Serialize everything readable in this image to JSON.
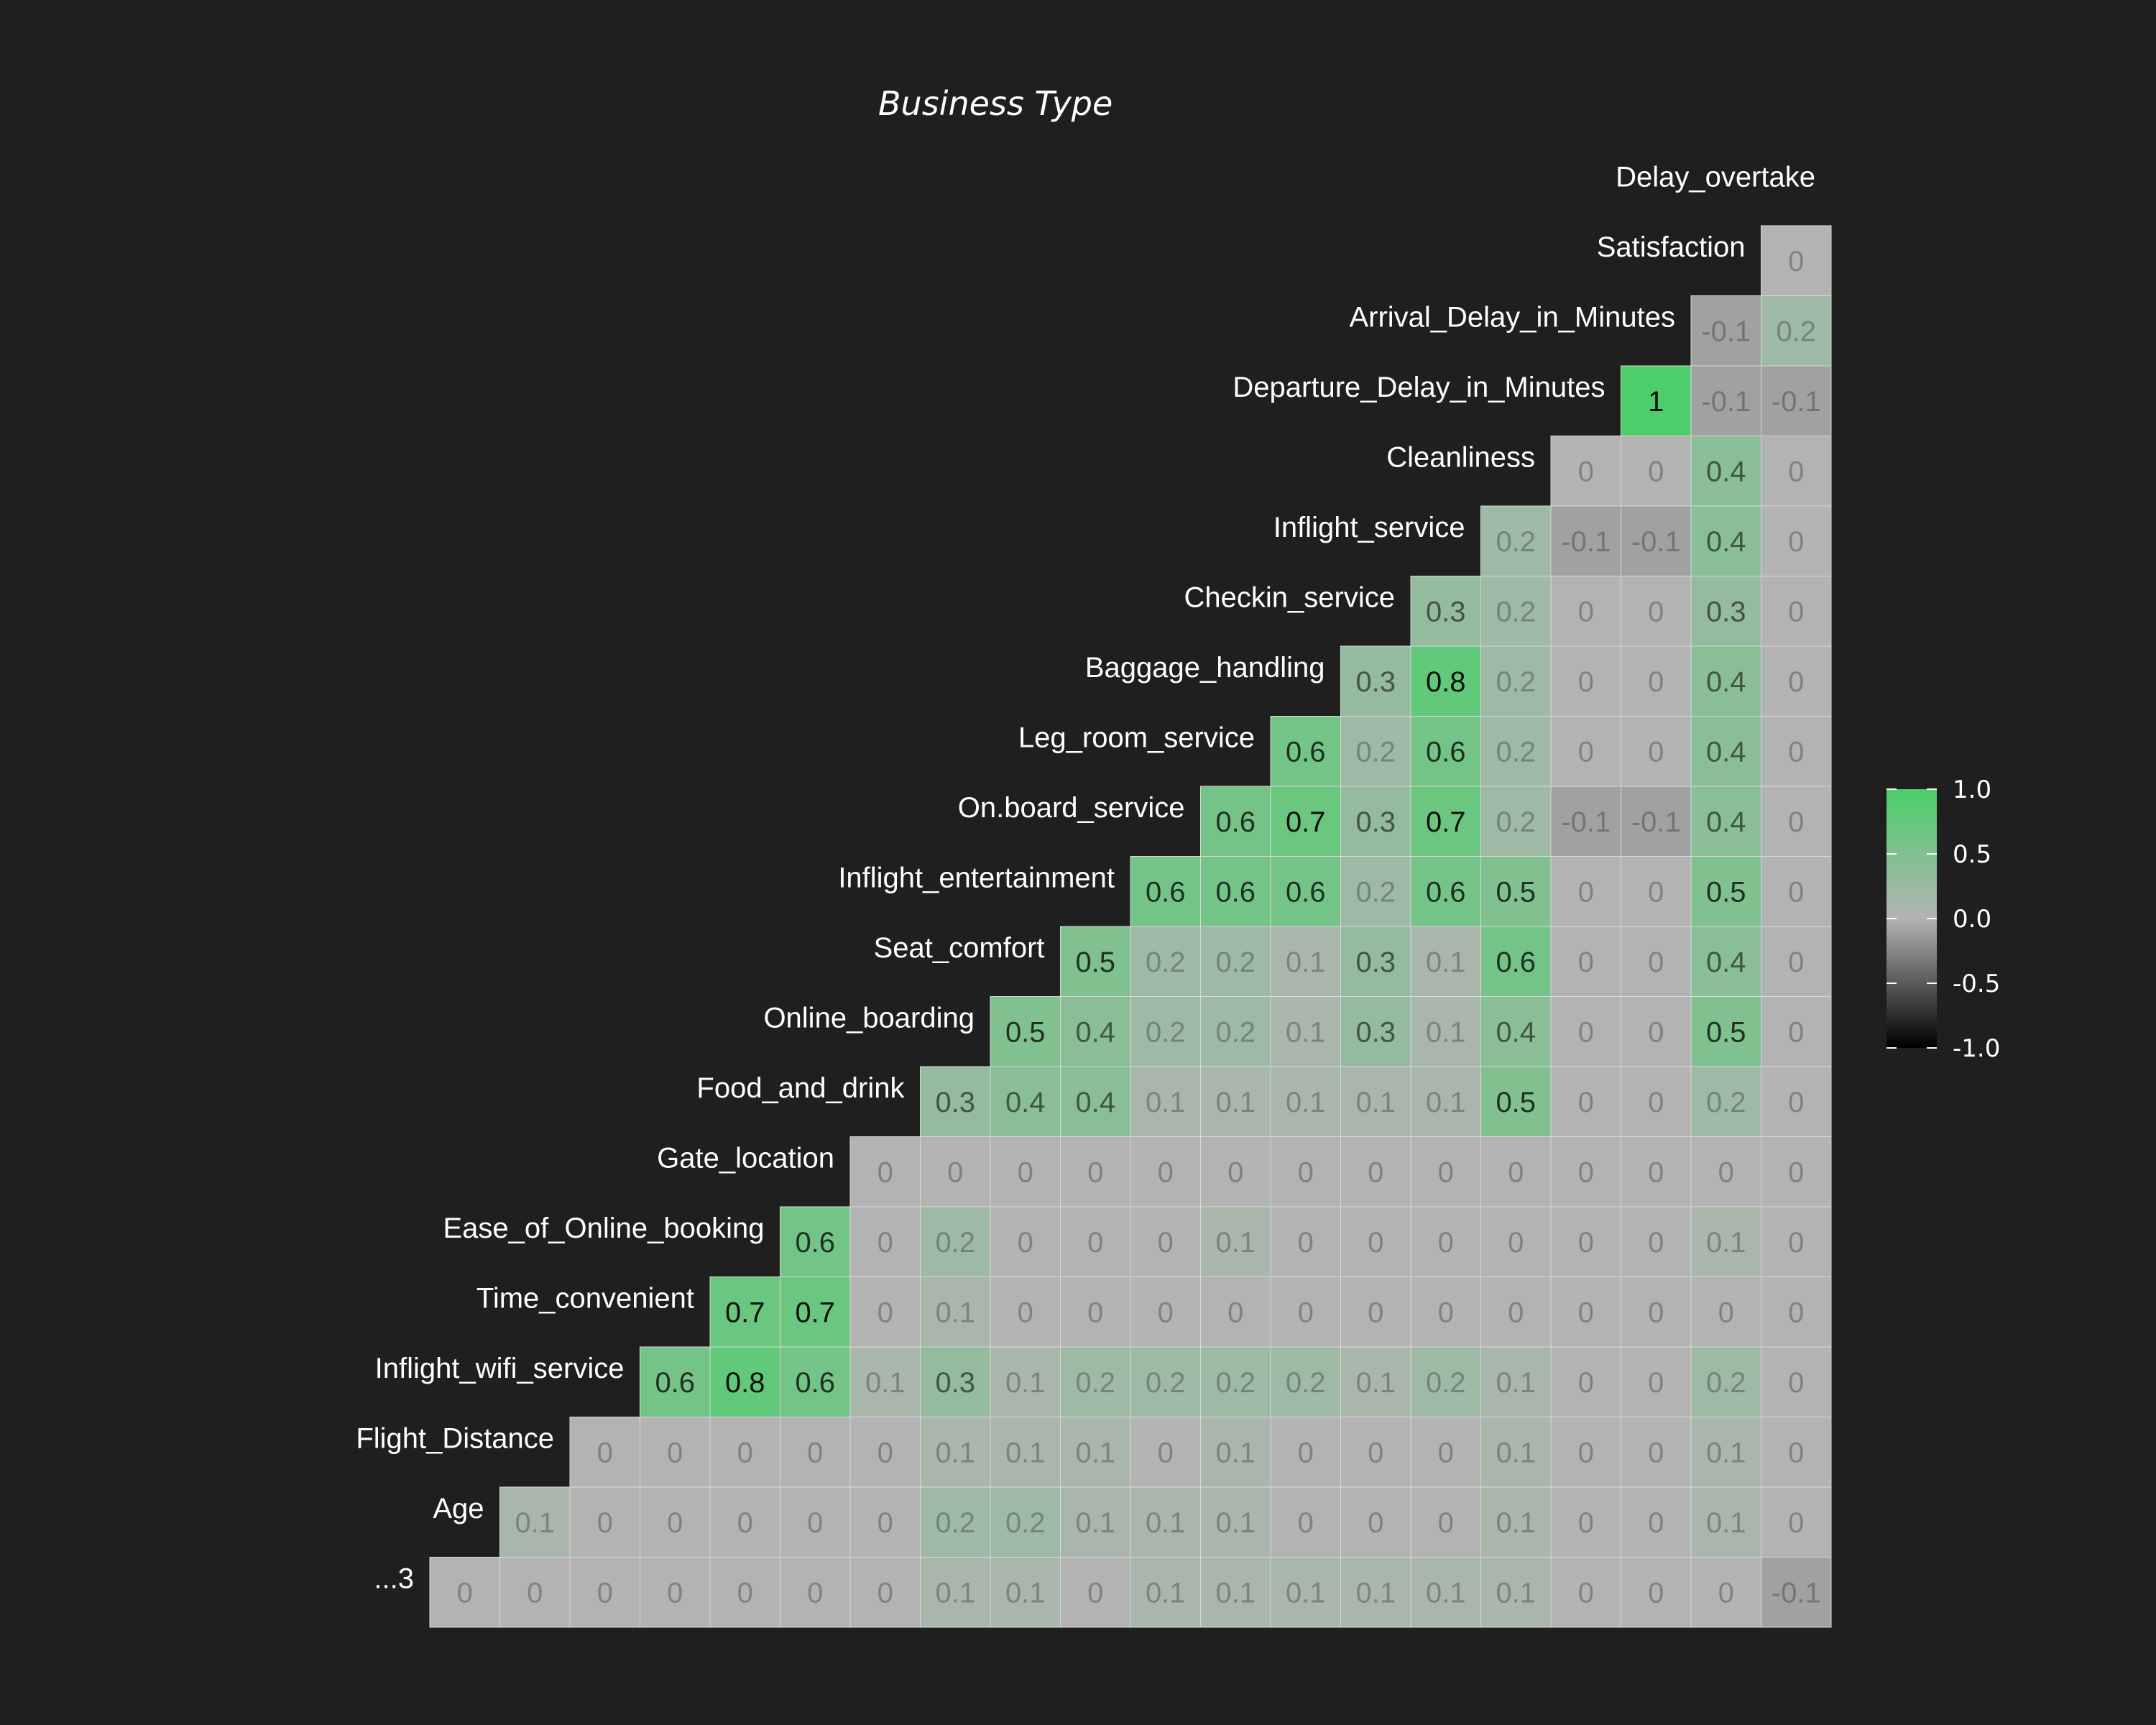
{
  "chart_data": {
    "type": "heatmap",
    "title": "Business Type",
    "variables": [
      "...3",
      "Age",
      "Flight_Distance",
      "Inflight_wifi_service",
      "Time_convenient",
      "Ease_of_Online_booking",
      "Gate_location",
      "Food_and_drink",
      "Online_boarding",
      "Seat_comfort",
      "Inflight_entertainment",
      "On.board_service",
      "Leg_room_service",
      "Baggage_handling",
      "Checkin_service",
      "Inflight_service",
      "Cleanliness",
      "Departure_Delay_in_Minutes",
      "Arrival_Delay_in_Minutes",
      "Satisfaction",
      "Delay_overtake"
    ],
    "matrix": [
      [
        0,
        0,
        0,
        0,
        0,
        0,
        0,
        0.1,
        0.1,
        0,
        0.1,
        0.1,
        0.1,
        0.1,
        0.1,
        0.1,
        0,
        0,
        0,
        -0.1
      ],
      [
        0.1,
        0,
        0,
        0,
        0,
        0,
        0.2,
        0.2,
        0.1,
        0.1,
        0.1,
        0,
        0,
        0,
        0.1,
        0,
        0,
        0.1,
        0
      ],
      [
        0,
        0,
        0,
        0,
        0,
        0.1,
        0.1,
        0.1,
        0,
        0.1,
        0,
        0,
        0,
        0.1,
        0,
        0,
        0.1,
        0
      ],
      [
        0.6,
        0.8,
        0.6,
        0.1,
        0.3,
        0.1,
        0.2,
        0.2,
        0.2,
        0.2,
        0.1,
        0.2,
        0.1,
        0,
        0,
        0.2,
        0
      ],
      [
        0.7,
        0.7,
        0,
        0.1,
        0,
        0,
        0,
        0,
        0,
        0,
        0,
        0,
        0,
        0,
        0,
        0
      ],
      [
        0.6,
        0,
        0.2,
        0,
        0,
        0,
        0.1,
        0,
        0,
        0,
        0,
        0,
        0,
        0.1,
        0
      ],
      [
        0,
        0,
        0,
        0,
        0,
        0,
        0,
        0,
        0,
        0,
        0,
        0,
        0,
        0
      ],
      [
        0.3,
        0.4,
        0.4,
        0.1,
        0.1,
        0.1,
        0.1,
        0.1,
        0.5,
        0,
        0,
        0.2,
        0
      ],
      [
        0.5,
        0.4,
        0.2,
        0.2,
        0.1,
        0.3,
        0.1,
        0.4,
        0,
        0,
        0.5,
        0
      ],
      [
        0.5,
        0.2,
        0.2,
        0.1,
        0.3,
        0.1,
        0.6,
        0,
        0,
        0.4,
        0
      ],
      [
        0.6,
        0.6,
        0.6,
        0.2,
        0.6,
        0.5,
        0,
        0,
        0.5,
        0
      ],
      [
        0.6,
        0.7,
        0.3,
        0.7,
        0.2,
        -0.1,
        -0.1,
        0.4,
        0
      ],
      [
        0.6,
        0.2,
        0.6,
        0.2,
        0,
        0,
        0.4,
        0
      ],
      [
        0.3,
        0.8,
        0.2,
        0,
        0,
        0.4,
        0
      ],
      [
        0.3,
        0.2,
        0,
        0,
        0.3,
        0
      ],
      [
        0.2,
        -0.1,
        -0.1,
        0.4,
        0
      ],
      [
        0,
        0,
        0.4,
        0
      ],
      [
        1,
        -0.1,
        -0.1
      ],
      [
        -0.1,
        0.2
      ],
      [
        0
      ]
    ],
    "value_range": [
      -1,
      1
    ],
    "legend": {
      "position": "right",
      "ticks": [
        "1.0",
        "0.5",
        "0.0",
        "-0.5",
        "-1.0"
      ],
      "colors": {
        "low": "#000000",
        "mid": "#b3b3b3",
        "high": "#4ccf6a"
      }
    },
    "grid": false
  }
}
